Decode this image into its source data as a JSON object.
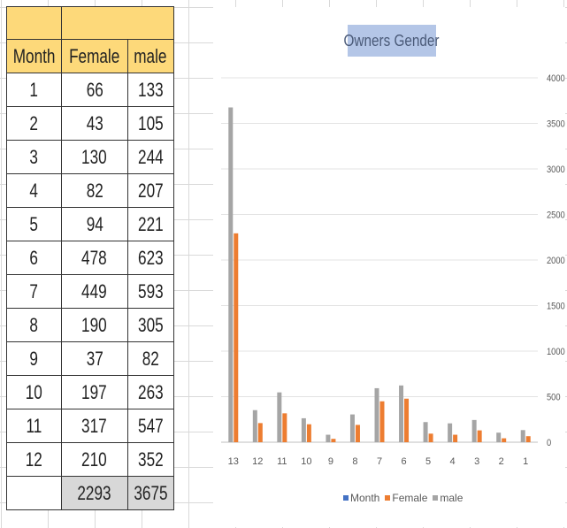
{
  "table": {
    "headers": [
      "Month",
      "Female",
      "male"
    ],
    "rows": [
      [
        "1",
        "66",
        "133"
      ],
      [
        "2",
        "43",
        "105"
      ],
      [
        "3",
        "130",
        "244"
      ],
      [
        "4",
        "82",
        "207"
      ],
      [
        "5",
        "94",
        "221"
      ],
      [
        "6",
        "478",
        "623"
      ],
      [
        "7",
        "449",
        "593"
      ],
      [
        "8",
        "190",
        "305"
      ],
      [
        "9",
        "37",
        "82"
      ],
      [
        "10",
        "197",
        "263"
      ],
      [
        "11",
        "317",
        "547"
      ],
      [
        "12",
        "210",
        "352"
      ]
    ],
    "totals": [
      "",
      "2293",
      "3675"
    ]
  },
  "chart_data": {
    "type": "bar",
    "title": "Owners Gender",
    "categories": [
      "13",
      "12",
      "11",
      "10",
      "9",
      "8",
      "7",
      "6",
      "5",
      "4",
      "3",
      "2",
      "1"
    ],
    "series": [
      {
        "name": "Month",
        "color": "#4472c4",
        "values": [
          0,
          0,
          0,
          0,
          0,
          0,
          0,
          0,
          0,
          0,
          0,
          0,
          0
        ]
      },
      {
        "name": "Female",
        "color": "#ed7d31",
        "values": [
          2293,
          210,
          317,
          197,
          37,
          190,
          449,
          478,
          94,
          82,
          130,
          43,
          66
        ]
      },
      {
        "name": "male",
        "color": "#a5a5a5",
        "values": [
          3675,
          352,
          547,
          263,
          82,
          305,
          593,
          623,
          221,
          207,
          244,
          105,
          133
        ]
      }
    ],
    "y_ticks": [
      "0",
      "500",
      "1000",
      "1500",
      "2000",
      "2500",
      "3000",
      "3500",
      "4000"
    ],
    "ylim": [
      0,
      4000
    ],
    "y_axis_side": "right",
    "grid": true,
    "legend_position": "bottom"
  }
}
